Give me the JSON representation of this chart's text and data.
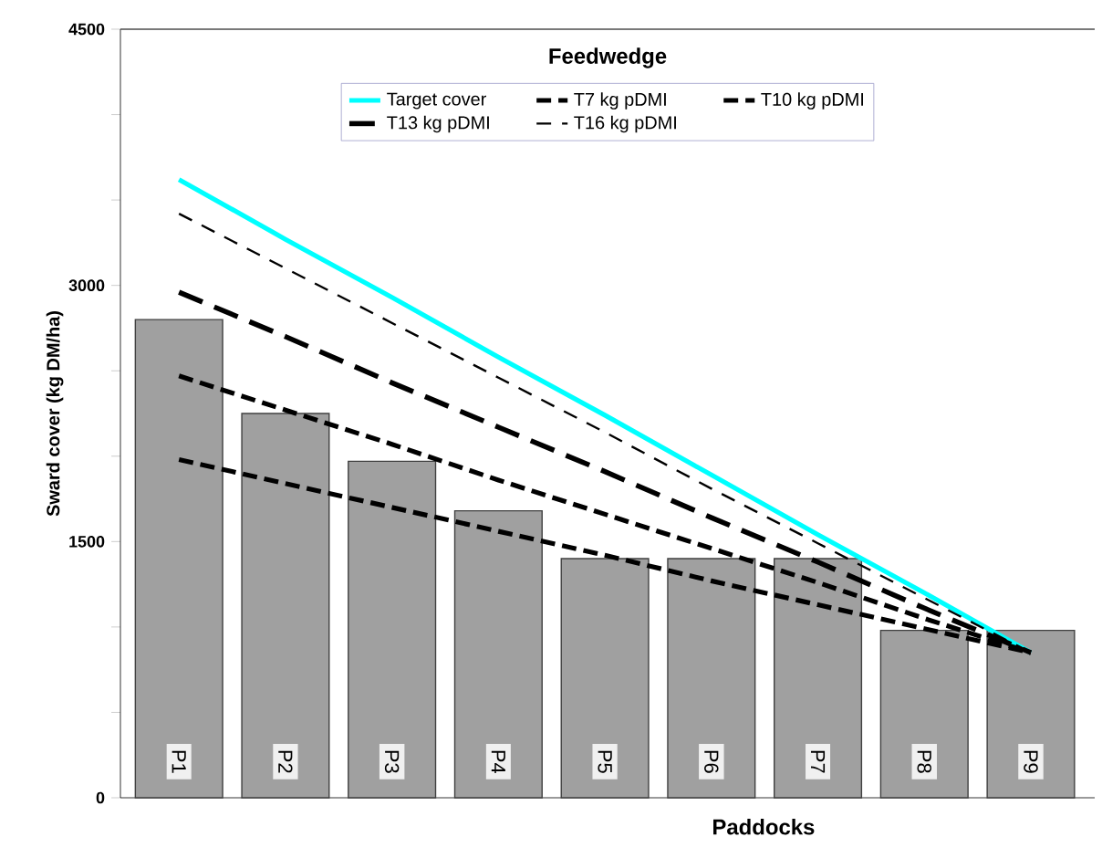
{
  "chart_data": {
    "type": "bar",
    "title": "Feedwedge",
    "xlabel": "Paddocks",
    "ylabel": "Sward cover (kg DM/ha)",
    "categories": [
      "P1",
      "P2",
      "P3",
      "P4",
      "P5",
      "P6",
      "P7",
      "P8",
      "P9"
    ],
    "series": [
      {
        "color": "#a0a0a0",
        "values": [
          2800,
          2250,
          1970,
          1680,
          1400,
          1400,
          1400,
          980,
          980
        ]
      },
      {
        "type": "line",
        "name": "Target cover",
        "color": "#00ffff",
        "line_style": "solid",
        "values": [
          3620,
          3270,
          2930,
          2580,
          2240,
          1890,
          1540,
          1200,
          850
        ]
      },
      {
        "type": "line",
        "name": "T7 kg pDMI",
        "color": "#000000",
        "line_style": "dashed",
        "values": [
          1980,
          1840,
          1700,
          1560,
          1420,
          1270,
          1130,
          990,
          850
        ]
      },
      {
        "type": "line",
        "name": "T10 kg pDMI",
        "color": "#000000",
        "line_style": "dashed",
        "values": [
          2470,
          2270,
          2070,
          1860,
          1660,
          1460,
          1260,
          1050,
          850
        ]
      },
      {
        "type": "line",
        "name": "T13 kg pDMI",
        "color": "#000000",
        "line_style": "dashed",
        "values": [
          2960,
          2700,
          2430,
          2170,
          1910,
          1640,
          1380,
          1110,
          850
        ]
      },
      {
        "type": "line",
        "name": "T16 kg pDMI",
        "color": "#000000",
        "line_style": "dashed",
        "values": [
          3420,
          3100,
          2780,
          2460,
          2140,
          1810,
          1490,
          1170,
          850
        ]
      }
    ],
    "ylim": [
      0,
      4500
    ],
    "yticks": [
      0,
      {
        "value": 500,
        "label": null
      },
      {
        "value": 1000,
        "label": null
      },
      1500,
      {
        "value": 2000,
        "label": null
      },
      {
        "value": 2500,
        "label": null
      },
      3000,
      {
        "value": 3500,
        "label": null
      },
      {
        "value": 4000,
        "label": null
      },
      4500
    ],
    "legend": "top"
  }
}
